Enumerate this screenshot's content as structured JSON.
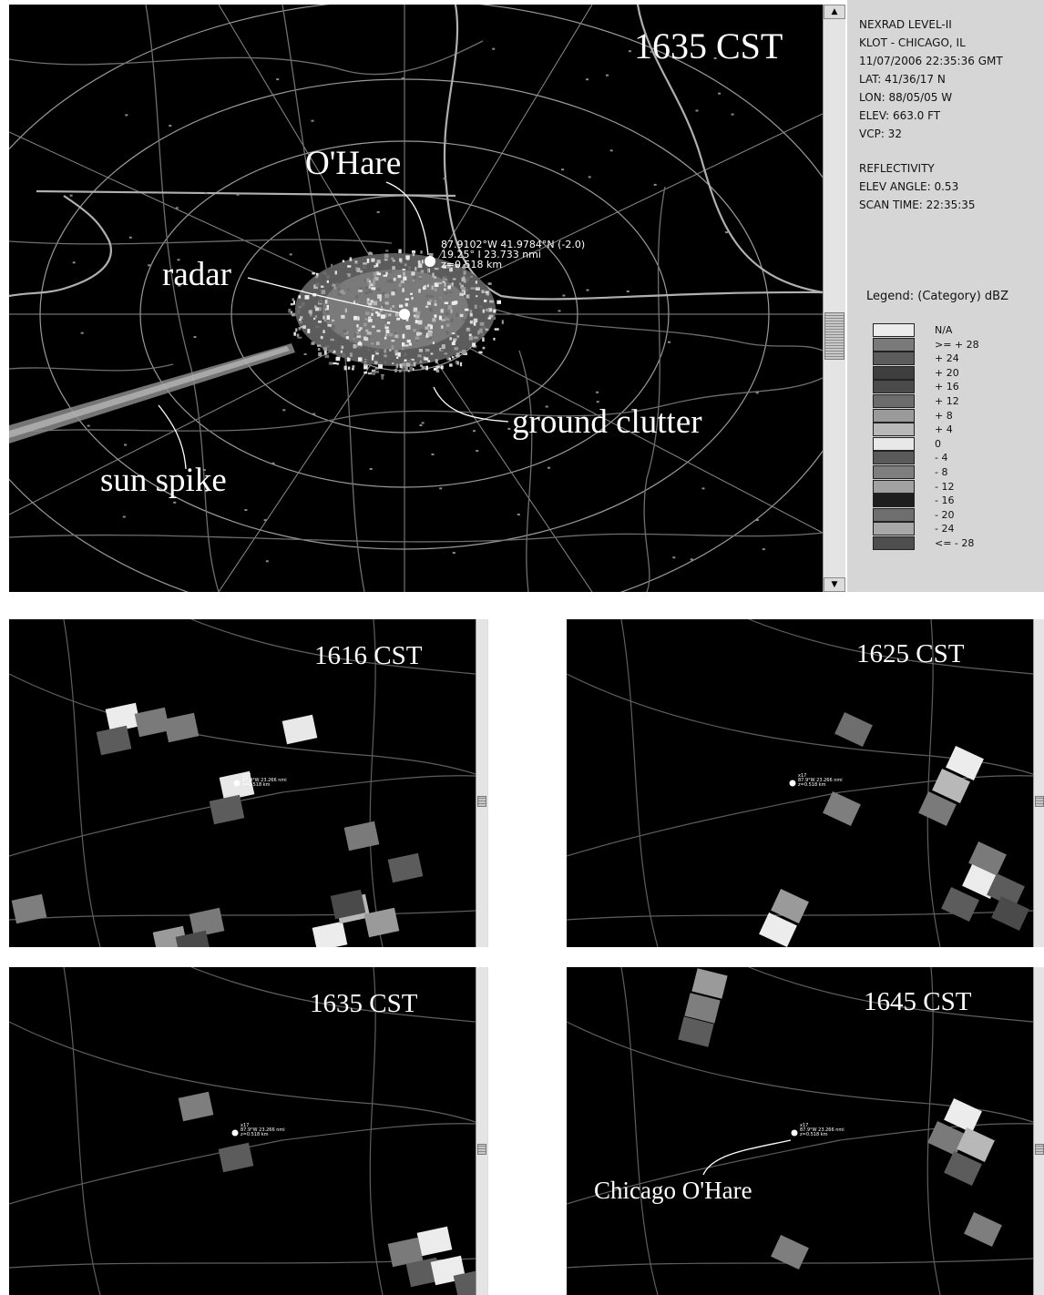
{
  "main_panel": {
    "time": "1635 CST",
    "annotations": {
      "ohare": "O'Hare",
      "radar": "radar",
      "ground_clutter": "ground clutter",
      "sun_spike": "sun spike"
    },
    "readout": {
      "line1": "87.9102°W 41.9784°N  (-2.0)",
      "line2": "19.25° I 23.733 nmi",
      "line3": "z=0.518 km"
    }
  },
  "info_panel": {
    "lines": [
      "NEXRAD LEVEL-II",
      "KLOT - CHICAGO, IL",
      "11/07/2006 22:35:36 GMT",
      "LAT: 41/36/17 N",
      "LON: 88/05/05 W",
      "ELEV: 663.0 FT",
      "VCP: 32"
    ],
    "product_lines": [
      "REFLECTIVITY",
      "ELEV ANGLE: 0.53",
      "SCAN TIME: 22:35:35"
    ],
    "legend_title": "Legend: (Category) dBZ",
    "legend": [
      {
        "label": "N/A",
        "color": "#ececec"
      },
      {
        "label": ">= + 28",
        "color": "#7a7a7a"
      },
      {
        "label": "+ 24",
        "color": "#5c5c5c"
      },
      {
        "label": "+ 20",
        "color": "#3e3e3e"
      },
      {
        "label": "+ 16",
        "color": "#4a4a4a"
      },
      {
        "label": "+ 12",
        "color": "#6c6c6c"
      },
      {
        "label": "+ 8",
        "color": "#9a9a9a"
      },
      {
        "label": "+ 4",
        "color": "#b8b8b8"
      },
      {
        "label": "0",
        "color": "#e8e8e8"
      },
      {
        "label": "- 4",
        "color": "#5a5a5a"
      },
      {
        "label": "- 8",
        "color": "#7e7e7e"
      },
      {
        "label": "- 12",
        "color": "#a2a2a2"
      },
      {
        "label": "- 16",
        "color": "#1e1e1e"
      },
      {
        "label": "- 20",
        "color": "#6e6e6e"
      },
      {
        "label": "- 24",
        "color": "#a8a8a8"
      },
      {
        "label": "<= - 28",
        "color": "#4e4e4e"
      }
    ]
  },
  "small_panels": [
    {
      "time": "1616 CST"
    },
    {
      "time": "1625 CST"
    },
    {
      "time": "1635 CST"
    },
    {
      "time": "1645 CST",
      "annotation": "Chicago O'Hare"
    }
  ],
  "small_readout": {
    "line1": "x17",
    "line2": "87.9°W 23.266 nmi",
    "line3": "z=0.518 km"
  },
  "scrollbar_icons": {
    "up": "arrow-up-icon",
    "down": "arrow-down-icon"
  }
}
